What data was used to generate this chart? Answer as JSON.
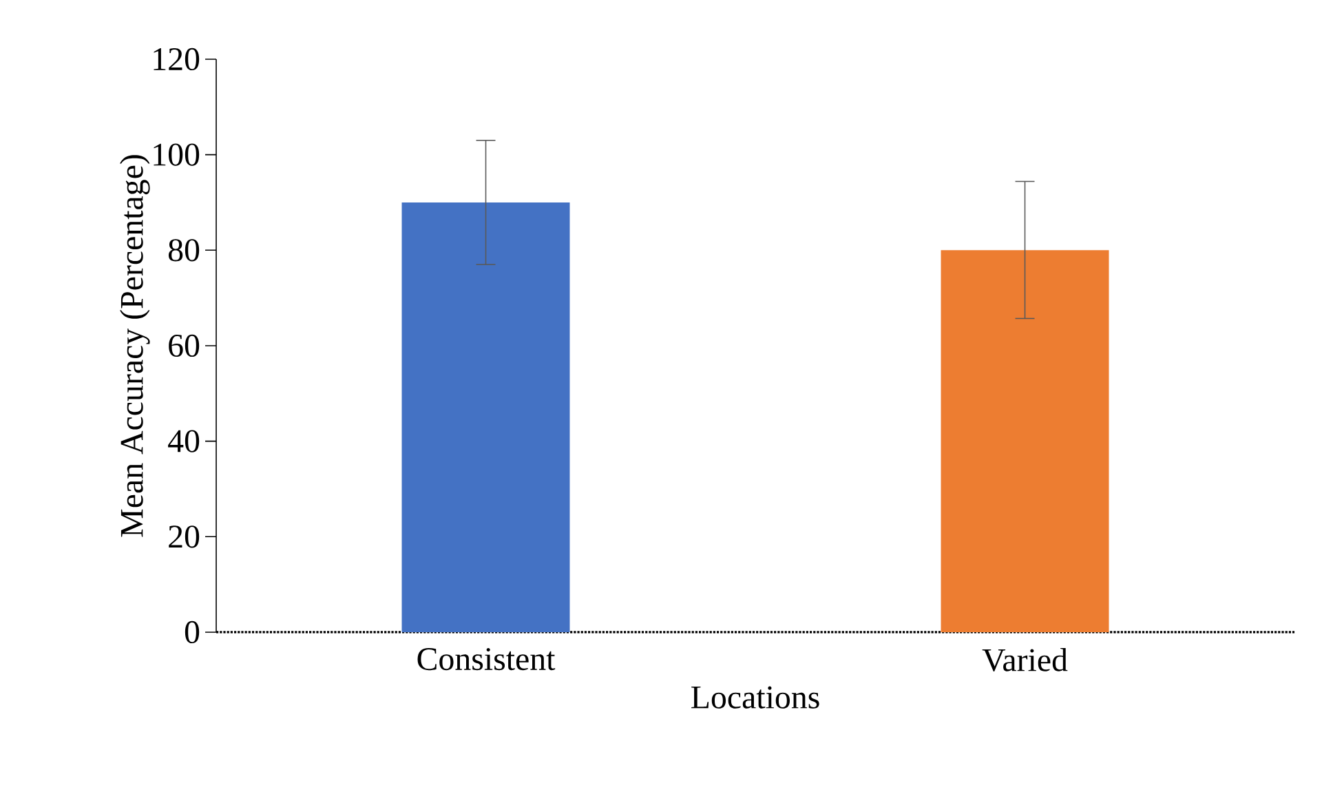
{
  "chart_data": {
    "type": "bar",
    "xlabel": "Locations",
    "ylabel": "Mean Accuracy (Percentage)",
    "categories": [
      "Consistent",
      "Varied"
    ],
    "values": [
      90,
      80
    ],
    "colors": [
      "#4472c4",
      "#ed7d31"
    ],
    "errors": [
      [
        77,
        103
      ],
      [
        65.7,
        94.4
      ]
    ],
    "ylim": [
      0,
      120
    ],
    "yticks": [
      0,
      20,
      40,
      60,
      80,
      100,
      120
    ],
    "grid": false
  }
}
